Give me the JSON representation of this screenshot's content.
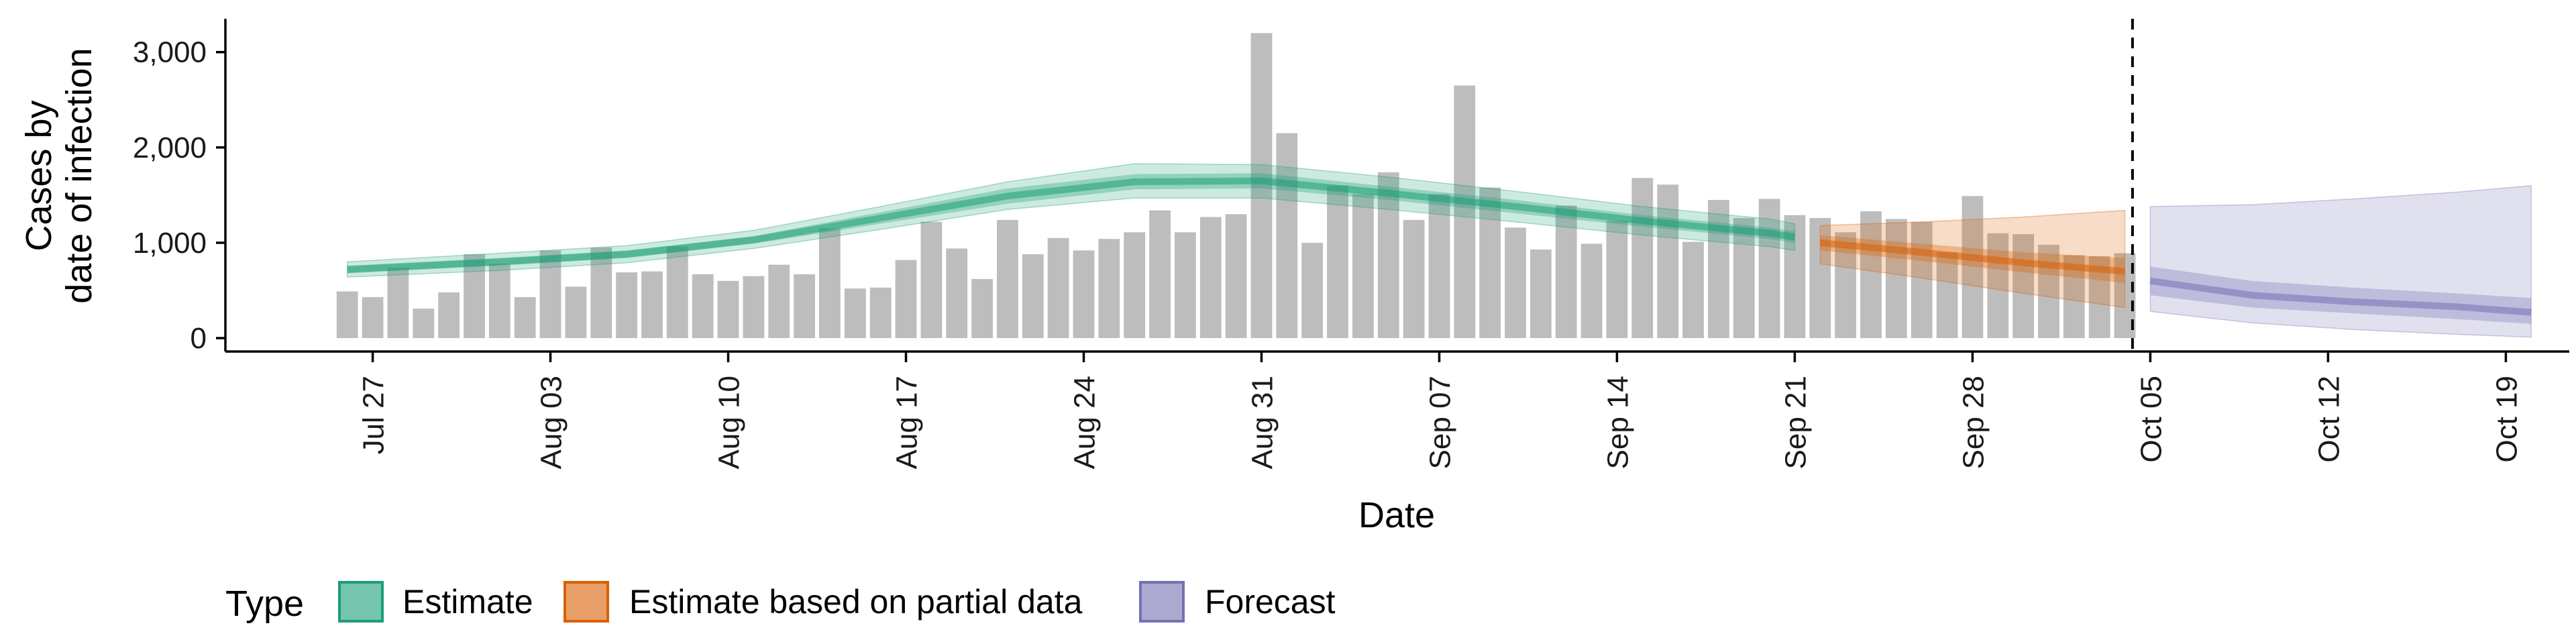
{
  "chart_data": {
    "type": "bar+ribbon",
    "xlabel": "Date",
    "ylabel_lines": [
      "Cases by",
      "date of infection"
    ],
    "ylim": [
      0,
      3350
    ],
    "y_ticks": [
      0,
      1000,
      2000,
      3000
    ],
    "y_tick_labels": [
      "0",
      "1,000",
      "2,000",
      "3,000"
    ],
    "x_tick_days": [
      0,
      7,
      14,
      21,
      28,
      35,
      42,
      49,
      56,
      63,
      70,
      77,
      84
    ],
    "x_tick_labels": [
      "Jul 27",
      "Aug 03",
      "Aug 10",
      "Aug 17",
      "Aug 24",
      "Aug 31",
      "Sep 07",
      "Sep 14",
      "Sep 21",
      "Sep 28",
      "Oct 05",
      "Oct 12",
      "Oct 19"
    ],
    "x_day_range": [
      -5.8,
      86.5
    ],
    "bar_start_day": -1,
    "bar_values": [
      490,
      430,
      740,
      310,
      480,
      880,
      780,
      430,
      920,
      540,
      950,
      690,
      700,
      960,
      670,
      600,
      650,
      770,
      670,
      1150,
      520,
      530,
      820,
      1220,
      940,
      620,
      1240,
      880,
      1050,
      920,
      1040,
      1110,
      1340,
      1110,
      1270,
      1300,
      3200,
      2150,
      1000,
      1600,
      1510,
      1740,
      1240,
      1510,
      2650,
      1580,
      1160,
      930,
      1390,
      990,
      1230,
      1680,
      1610,
      1010,
      1450,
      1260,
      1460,
      1290,
      1260,
      1110,
      1330,
      1250,
      1220,
      900,
      1490,
      1100,
      1090,
      980,
      870,
      860,
      890
    ],
    "forecast_cutoff_day": 69.3,
    "series": [
      {
        "name": "Estimate",
        "color": "#1b9e77",
        "x": [
          -1,
          5,
          10,
          15,
          20,
          25,
          30,
          35,
          40,
          45,
          50,
          55,
          56
        ],
        "median": [
          720,
          800,
          880,
          1030,
          1260,
          1490,
          1640,
          1650,
          1520,
          1380,
          1230,
          1100,
          1060
        ],
        "lower50": [
          680,
          760,
          840,
          990,
          1200,
          1410,
          1560,
          1570,
          1450,
          1310,
          1170,
          1040,
          1000
        ],
        "upper50": [
          760,
          840,
          920,
          1070,
          1320,
          1570,
          1720,
          1730,
          1590,
          1450,
          1290,
          1160,
          1120
        ],
        "lower90": [
          640,
          710,
          790,
          940,
          1140,
          1350,
          1470,
          1470,
          1350,
          1220,
          1080,
          960,
          920
        ],
        "upper90": [
          800,
          890,
          970,
          1130,
          1380,
          1640,
          1830,
          1820,
          1690,
          1540,
          1380,
          1250,
          1200
        ]
      },
      {
        "name": "Estimate based on partial data",
        "color": "#d95f02",
        "x": [
          57,
          61,
          65,
          69
        ],
        "median": [
          1000,
          900,
          790,
          700
        ],
        "lower50": [
          920,
          810,
          690,
          580
        ],
        "upper50": [
          1080,
          990,
          900,
          840
        ],
        "lower90": [
          780,
          630,
          470,
          320
        ],
        "upper90": [
          1180,
          1220,
          1270,
          1340
        ]
      },
      {
        "name": "Forecast",
        "color": "#7570b3",
        "x": [
          70,
          74,
          78,
          82,
          85
        ],
        "median": [
          600,
          450,
          380,
          330,
          270
        ],
        "lower50": [
          450,
          320,
          260,
          200,
          150
        ],
        "upper50": [
          750,
          600,
          530,
          470,
          420
        ],
        "lower90": [
          280,
          160,
          90,
          40,
          10
        ],
        "upper90": [
          1380,
          1400,
          1460,
          1530,
          1600
        ]
      }
    ],
    "legend": {
      "title": "Type",
      "position": "bottom",
      "items": [
        {
          "label": "Estimate",
          "color": "#1b9e77"
        },
        {
          "label": "Estimate based on partial data",
          "color": "#d95f02"
        },
        {
          "label": "Forecast",
          "color": "#7570b3"
        }
      ]
    }
  }
}
